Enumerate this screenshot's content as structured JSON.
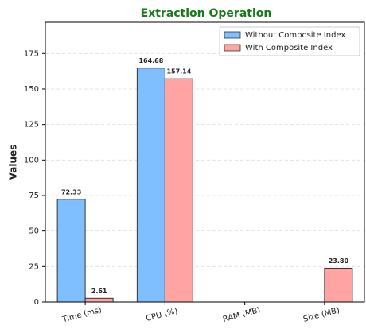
{
  "chart_data": {
    "type": "bar",
    "title": "Extraction Operation",
    "ylabel": "Values",
    "categories": [
      "Time (ms)",
      "CPU (%)",
      "RAM (MB)",
      "Size (MB)"
    ],
    "series": [
      {
        "name": "Without Composite Index",
        "color": "#80bfff",
        "values": [
          72.33,
          164.68,
          null,
          null
        ]
      },
      {
        "name": "With Composite Index",
        "color": "#ffa3a3",
        "values": [
          2.61,
          157.14,
          null,
          23.8
        ],
        "value_labels": [
          "2.61",
          "157.14",
          null,
          "23.80"
        ]
      }
    ],
    "ylim": [
      0,
      197
    ],
    "yticks": [
      0,
      25,
      50,
      75,
      100,
      125,
      150,
      175
    ],
    "grid": true,
    "legend": "upper right"
  }
}
